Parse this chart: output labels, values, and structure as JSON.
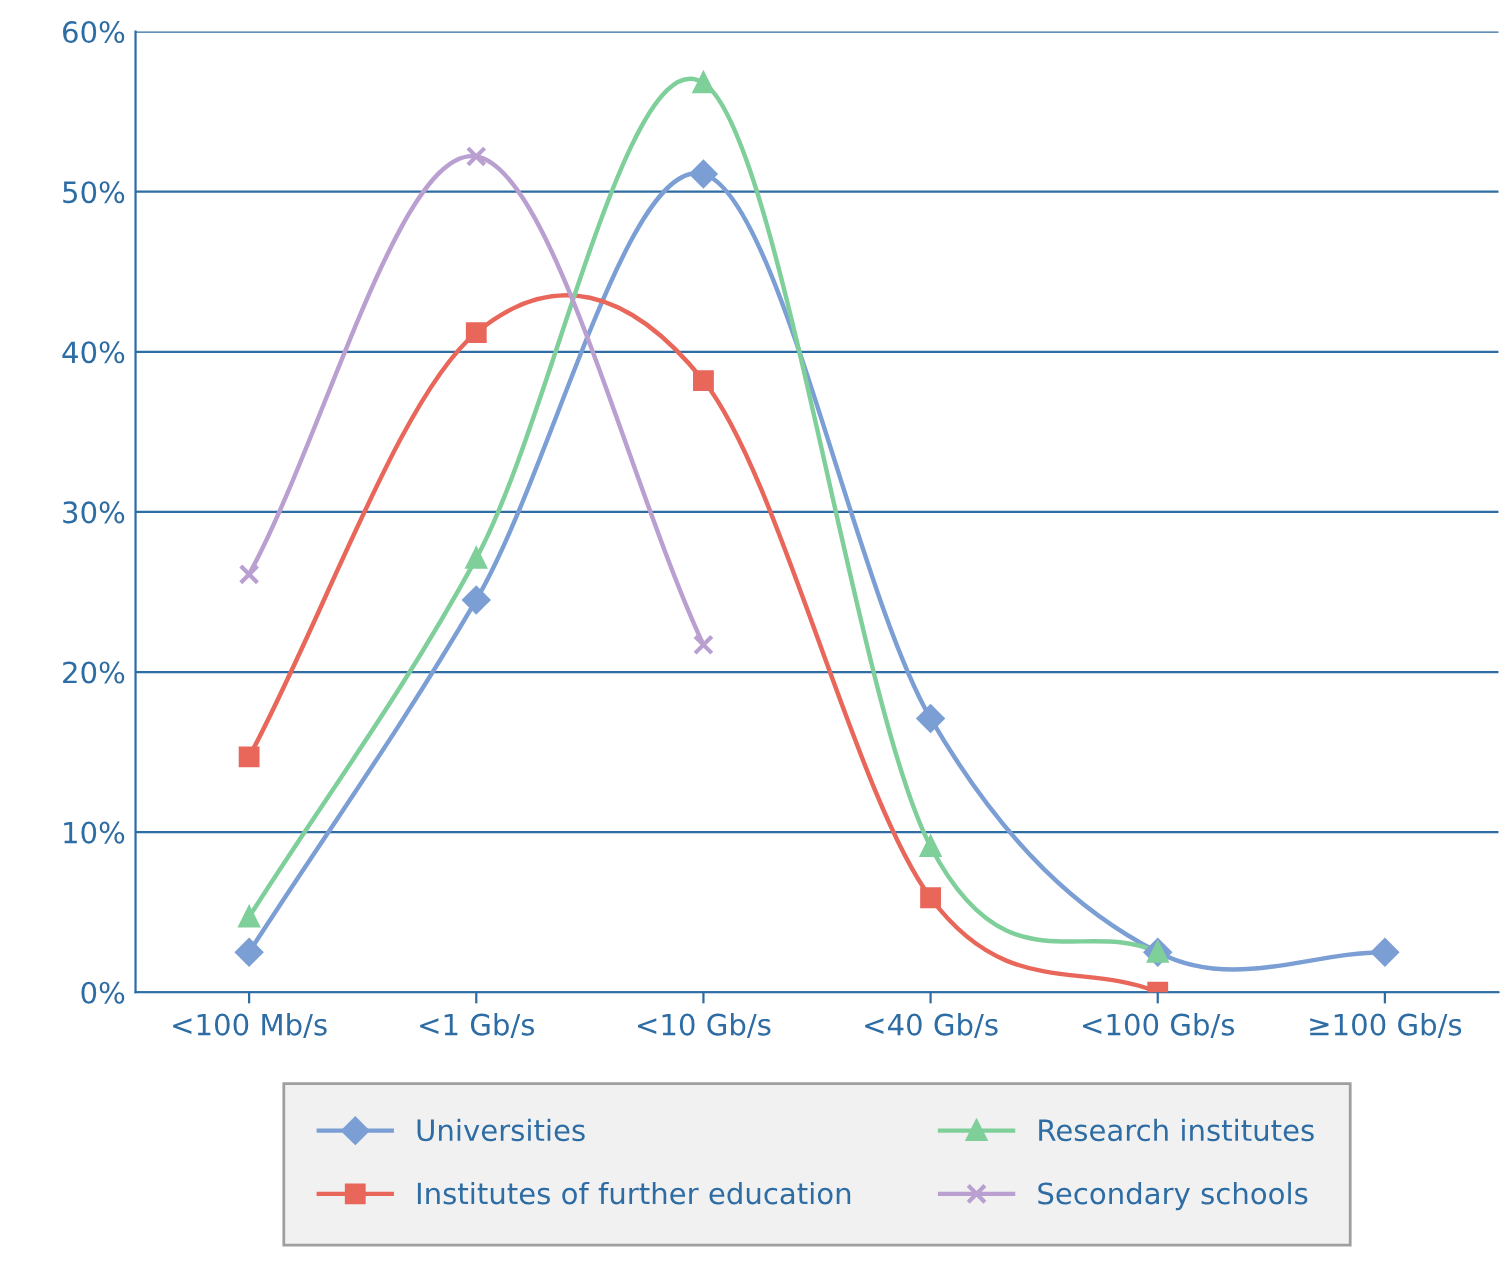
{
  "chart_data": {
    "type": "line",
    "categories": [
      "<100 Mb/s",
      "<1 Gb/s",
      "<10 Gb/s",
      "<40 Gb/s",
      "<100 Gb/s",
      "≥100 Gb/s"
    ],
    "series": [
      {
        "name": "Universities",
        "color": "#7b9fd4",
        "marker": "diamond",
        "values": [
          2.5,
          24.5,
          51.1,
          17.1,
          2.5,
          2.5
        ]
      },
      {
        "name": "Institutes of further education",
        "color": "#e8675a",
        "marker": "square",
        "values": [
          14.7,
          41.2,
          38.2,
          5.9,
          0,
          null
        ]
      },
      {
        "name": "Research institutes",
        "color": "#7fcf9a",
        "marker": "triangle",
        "values": [
          4.7,
          27.1,
          56.8,
          9.1,
          2.5,
          null
        ]
      },
      {
        "name": "Secondary schools",
        "color": "#b9a0d0",
        "marker": "cross",
        "values": [
          26.1,
          52.2,
          21.7,
          null,
          null,
          null
        ]
      }
    ],
    "ylim": [
      0,
      60
    ],
    "yticks": [
      {
        "value": 0,
        "label": "0%"
      },
      {
        "value": 10,
        "label": "10%"
      },
      {
        "value": 20,
        "label": "20%"
      },
      {
        "value": 30,
        "label": "30%"
      },
      {
        "value": 40,
        "label": "40%"
      },
      {
        "value": 50,
        "label": "50%"
      },
      {
        "value": 60,
        "label": "60%"
      }
    ],
    "grid": "y",
    "legend": "bottom",
    "line_style": "solid"
  }
}
